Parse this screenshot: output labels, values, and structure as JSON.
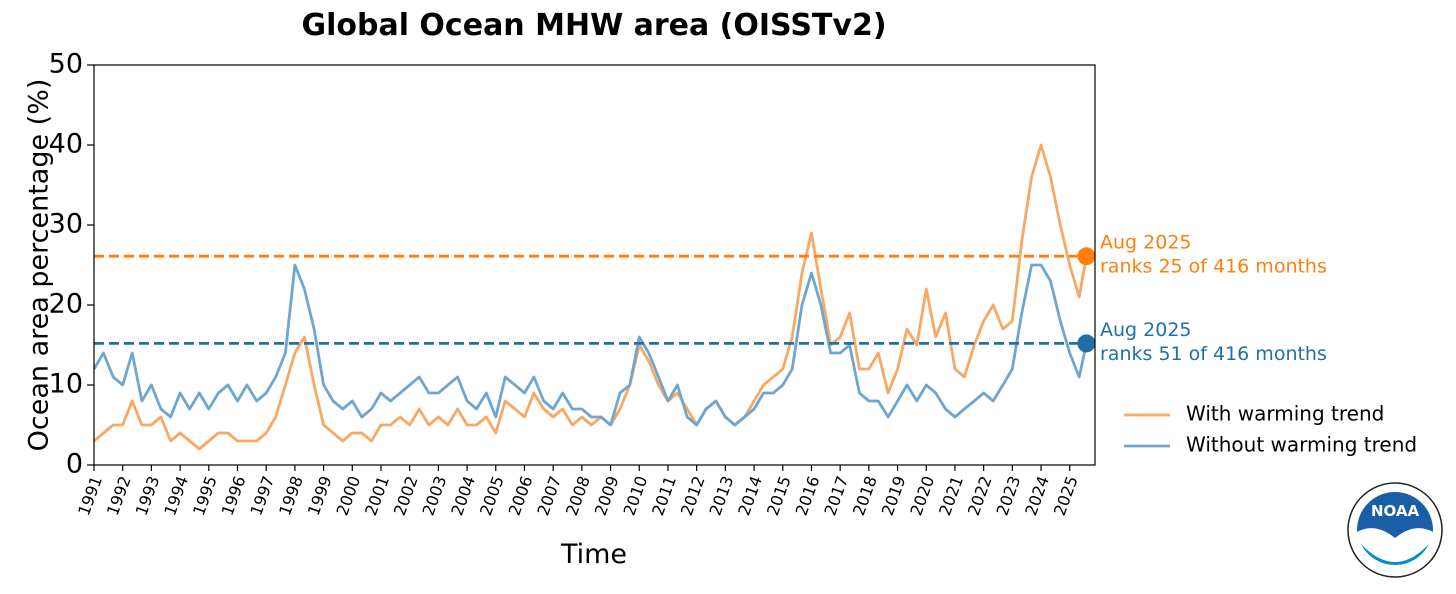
{
  "chart_data": {
    "type": "line",
    "title": "Global Ocean MHW area (OISSTv2)",
    "x_label": "Time",
    "y_label": "Ocean area percentage (%)",
    "xlim": [
      1991,
      2025.88
    ],
    "ylim": [
      0,
      50
    ],
    "xticks": [
      1991,
      1992,
      1993,
      1994,
      1995,
      1996,
      1997,
      1998,
      1999,
      2000,
      2001,
      2002,
      2003,
      2004,
      2005,
      2006,
      2007,
      2008,
      2009,
      2010,
      2011,
      2012,
      2013,
      2014,
      2015,
      2016,
      2017,
      2018,
      2019,
      2020,
      2021,
      2022,
      2023,
      2024,
      2025
    ],
    "yticks": [
      0,
      10,
      20,
      30,
      40,
      50
    ],
    "legend_position": "right",
    "x": [
      1991,
      1991.33,
      1991.67,
      1992,
      1992.33,
      1992.67,
      1993,
      1993.33,
      1993.67,
      1994,
      1994.33,
      1994.67,
      1995,
      1995.33,
      1995.67,
      1996,
      1996.33,
      1996.67,
      1997,
      1997.33,
      1997.67,
      1998,
      1998.33,
      1998.67,
      1999,
      1999.33,
      1999.67,
      2000,
      2000.33,
      2000.67,
      2001,
      2001.33,
      2001.67,
      2002,
      2002.33,
      2002.67,
      2003,
      2003.33,
      2003.67,
      2004,
      2004.33,
      2004.67,
      2005,
      2005.33,
      2005.67,
      2006,
      2006.33,
      2006.67,
      2007,
      2007.33,
      2007.67,
      2008,
      2008.33,
      2008.67,
      2009,
      2009.33,
      2009.67,
      2010,
      2010.33,
      2010.67,
      2011,
      2011.33,
      2011.67,
      2012,
      2012.33,
      2012.67,
      2013,
      2013.33,
      2013.67,
      2014,
      2014.33,
      2014.67,
      2015,
      2015.33,
      2015.67,
      2016,
      2016.33,
      2016.67,
      2017,
      2017.33,
      2017.67,
      2018,
      2018.33,
      2018.67,
      2019,
      2019.33,
      2019.67,
      2020,
      2020.33,
      2020.67,
      2021,
      2021.33,
      2021.67,
      2022,
      2022.33,
      2022.67,
      2023,
      2023.33,
      2023.67,
      2024,
      2024.33,
      2024.67,
      2025,
      2025.33,
      2025.58
    ],
    "series": [
      {
        "name": "With warming trend",
        "color": "#f7a865",
        "values": [
          3,
          4,
          5,
          5,
          8,
          5,
          5,
          6,
          3,
          4,
          3,
          2,
          3,
          4,
          4,
          3,
          3,
          3,
          4,
          6,
          10,
          14,
          16,
          10,
          5,
          4,
          3,
          4,
          4,
          3,
          5,
          5,
          6,
          5,
          7,
          5,
          6,
          5,
          7,
          5,
          5,
          6,
          4,
          8,
          7,
          6,
          9,
          7,
          6,
          7,
          5,
          6,
          5,
          6,
          5,
          7,
          10,
          15,
          13,
          10,
          8,
          9,
          7,
          5,
          7,
          8,
          6,
          5,
          6,
          8,
          10,
          11,
          12,
          16,
          24,
          29,
          22,
          15,
          16,
          19,
          12,
          12,
          14,
          9,
          12,
          17,
          15,
          22,
          16,
          19,
          12,
          11,
          15,
          18,
          20,
          17,
          18,
          28,
          36,
          40,
          36,
          30,
          25,
          21,
          26.1
        ]
      },
      {
        "name": "Without warming trend",
        "color": "#6fa6cf",
        "values": [
          12,
          14,
          11,
          10,
          14,
          8,
          10,
          7,
          6,
          9,
          7,
          9,
          7,
          9,
          10,
          8,
          10,
          8,
          9,
          11,
          14,
          25,
          22,
          17,
          10,
          8,
          7,
          8,
          6,
          7,
          9,
          8,
          9,
          10,
          11,
          9,
          9,
          10,
          11,
          8,
          7,
          9,
          6,
          11,
          10,
          9,
          11,
          8,
          7,
          9,
          7,
          7,
          6,
          6,
          5,
          9,
          10,
          16,
          14,
          11,
          8,
          10,
          6,
          5,
          7,
          8,
          6,
          5,
          6,
          7,
          9,
          9,
          10,
          12,
          20,
          24,
          20,
          14,
          14,
          15,
          9,
          8,
          8,
          6,
          8,
          10,
          8,
          10,
          9,
          7,
          6,
          7,
          8,
          9,
          8,
          10,
          12,
          19,
          25,
          25,
          23,
          18,
          14,
          11,
          15.2
        ]
      }
    ],
    "reference_lines": [
      {
        "value": 26.1,
        "color": "#ff7f0e"
      },
      {
        "value": 15.2,
        "color": "#1f6fa8"
      }
    ],
    "annotations": [
      {
        "lines": [
          "Aug 2025",
          "ranks 25 of 416 months"
        ],
        "color": "#ff7f0e"
      },
      {
        "lines": [
          "Aug 2025",
          "ranks 51 of 416 months"
        ],
        "color": "#1f6fa8"
      }
    ]
  },
  "logo_text": "NOAA"
}
